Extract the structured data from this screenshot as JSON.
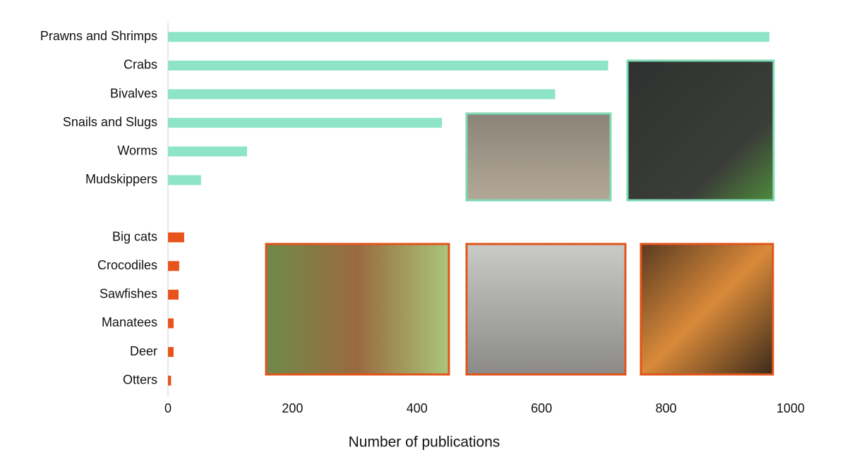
{
  "chart_data": {
    "type": "bar",
    "orientation": "horizontal",
    "categories": [
      "Prawns and Shrimps",
      "Crabs",
      "Bivalves",
      "Snails and Slugs",
      "Worms",
      "Mudskippers",
      null,
      "Big cats",
      "Crocodiles",
      "Sawfishes",
      "Manatees",
      "Deer",
      "Otters"
    ],
    "values": [
      966,
      707,
      622,
      440,
      127,
      53,
      null,
      26,
      18,
      17,
      9,
      9,
      5
    ],
    "colors": [
      "#8de4c6",
      "#8de4c6",
      "#8de4c6",
      "#8de4c6",
      "#8de4c6",
      "#8de4c6",
      null,
      "#e8531c",
      "#e8531c",
      "#e8531c",
      "#e8531c",
      "#e8531c",
      "#e8531c"
    ],
    "xlim": [
      0,
      1000
    ],
    "xticks": [
      0,
      200,
      400,
      600,
      800,
      1000
    ],
    "x_label": "Number of publications",
    "grid": false
  }
}
